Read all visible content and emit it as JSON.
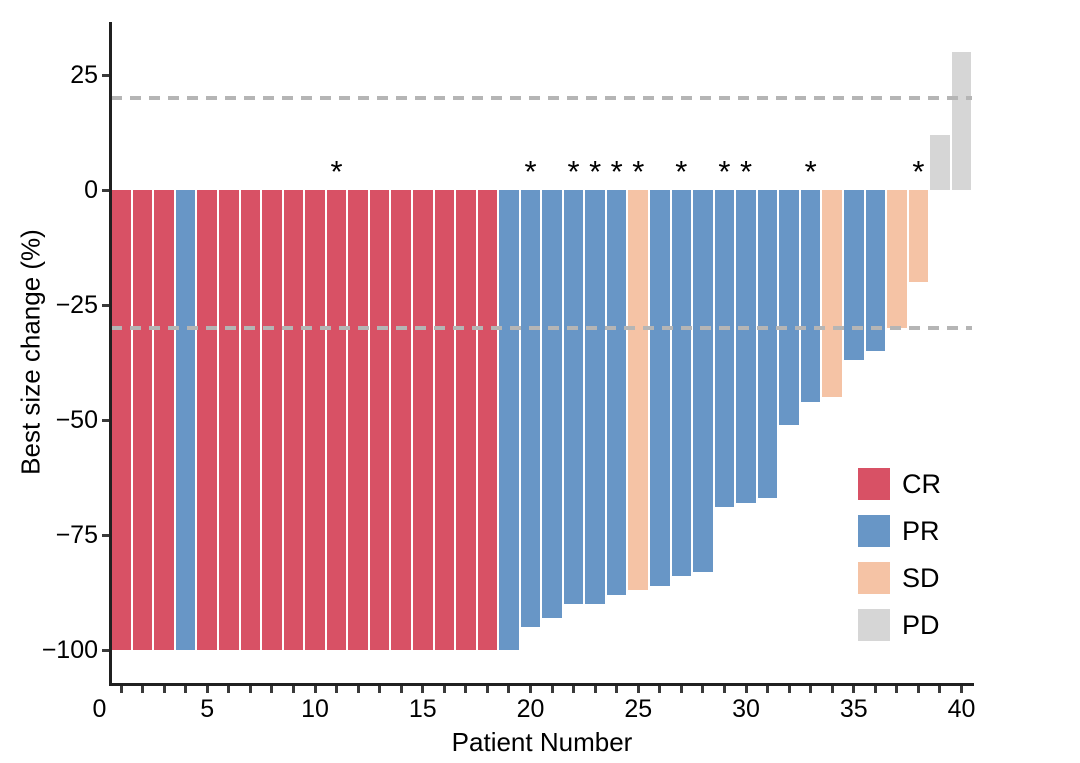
{
  "chart_data": {
    "type": "bar",
    "variant": "waterfall",
    "title": "",
    "xlabel": "Patient Number",
    "ylabel": "Best size change (%)",
    "x_axis": {
      "range": [
        0,
        40
      ],
      "minor_tick_step": 1,
      "major_ticks": [
        {
          "value": 0,
          "label": "0"
        },
        {
          "value": 5,
          "label": "5"
        },
        {
          "value": 10,
          "label": "10"
        },
        {
          "value": 15,
          "label": "15"
        },
        {
          "value": 20,
          "label": "20"
        },
        {
          "value": 25,
          "label": "25"
        },
        {
          "value": 30,
          "label": "30"
        },
        {
          "value": 35,
          "label": "35"
        },
        {
          "value": 40,
          "label": "40"
        }
      ]
    },
    "y_axis": {
      "range": [
        -100,
        30
      ],
      "ticks": [
        {
          "value": 25,
          "label": "25"
        },
        {
          "value": 0,
          "label": "0"
        },
        {
          "value": -25,
          "label": "−25"
        },
        {
          "value": -50,
          "label": "−50"
        },
        {
          "value": -75,
          "label": "−75"
        },
        {
          "value": -100,
          "label": "−100"
        }
      ]
    },
    "reference_lines": [
      {
        "value": 20,
        "style": "dashed",
        "color": "#b5b5b5"
      },
      {
        "value": -30,
        "style": "dashed",
        "color": "#b5b5b5"
      }
    ],
    "annotation_glyph": "*",
    "legend": {
      "position": "inside-right",
      "entries": [
        {
          "label": "CR",
          "color": "#d85165"
        },
        {
          "label": "PR",
          "color": "#6896c6"
        },
        {
          "label": "SD",
          "color": "#f5c3a5"
        },
        {
          "label": "PD",
          "color": "#d6d6d6"
        }
      ]
    },
    "patients": [
      {
        "n": 1,
        "change": -100,
        "response": "CR",
        "star": false
      },
      {
        "n": 2,
        "change": -100,
        "response": "CR",
        "star": false
      },
      {
        "n": 3,
        "change": -100,
        "response": "CR",
        "star": false
      },
      {
        "n": 4,
        "change": -100,
        "response": "PR",
        "star": false
      },
      {
        "n": 5,
        "change": -100,
        "response": "CR",
        "star": false
      },
      {
        "n": 6,
        "change": -100,
        "response": "CR",
        "star": false
      },
      {
        "n": 7,
        "change": -100,
        "response": "CR",
        "star": false
      },
      {
        "n": 8,
        "change": -100,
        "response": "CR",
        "star": false
      },
      {
        "n": 9,
        "change": -100,
        "response": "CR",
        "star": false
      },
      {
        "n": 10,
        "change": -100,
        "response": "CR",
        "star": false
      },
      {
        "n": 11,
        "change": -100,
        "response": "CR",
        "star": true
      },
      {
        "n": 12,
        "change": -100,
        "response": "CR",
        "star": false
      },
      {
        "n": 13,
        "change": -100,
        "response": "CR",
        "star": false
      },
      {
        "n": 14,
        "change": -100,
        "response": "CR",
        "star": false
      },
      {
        "n": 15,
        "change": -100,
        "response": "CR",
        "star": false
      },
      {
        "n": 16,
        "change": -100,
        "response": "CR",
        "star": false
      },
      {
        "n": 17,
        "change": -100,
        "response": "CR",
        "star": false
      },
      {
        "n": 18,
        "change": -100,
        "response": "CR",
        "star": false
      },
      {
        "n": 19,
        "change": -100,
        "response": "PR",
        "star": false
      },
      {
        "n": 20,
        "change": -95,
        "response": "PR",
        "star": true
      },
      {
        "n": 21,
        "change": -93,
        "response": "PR",
        "star": false
      },
      {
        "n": 22,
        "change": -90,
        "response": "PR",
        "star": true
      },
      {
        "n": 23,
        "change": -90,
        "response": "PR",
        "star": true
      },
      {
        "n": 24,
        "change": -88,
        "response": "PR",
        "star": true
      },
      {
        "n": 25,
        "change": -87,
        "response": "SD",
        "star": true
      },
      {
        "n": 26,
        "change": -86,
        "response": "PR",
        "star": false
      },
      {
        "n": 27,
        "change": -84,
        "response": "PR",
        "star": true
      },
      {
        "n": 28,
        "change": -83,
        "response": "PR",
        "star": false
      },
      {
        "n": 29,
        "change": -69,
        "response": "PR",
        "star": true
      },
      {
        "n": 30,
        "change": -68,
        "response": "PR",
        "star": true
      },
      {
        "n": 31,
        "change": -67,
        "response": "PR",
        "star": false
      },
      {
        "n": 32,
        "change": -51,
        "response": "PR",
        "star": false
      },
      {
        "n": 33,
        "change": -46,
        "response": "PR",
        "star": true
      },
      {
        "n": 34,
        "change": -45,
        "response": "SD",
        "star": false
      },
      {
        "n": 35,
        "change": -37,
        "response": "PR",
        "star": false
      },
      {
        "n": 36,
        "change": -35,
        "response": "PR",
        "star": false
      },
      {
        "n": 37,
        "change": -30,
        "response": "SD",
        "star": false
      },
      {
        "n": 38,
        "change": -20,
        "response": "SD",
        "star": true
      },
      {
        "n": 39,
        "change": 12,
        "response": "PD",
        "star": false
      },
      {
        "n": 40,
        "change": 30,
        "response": "PD",
        "star": false
      }
    ]
  }
}
